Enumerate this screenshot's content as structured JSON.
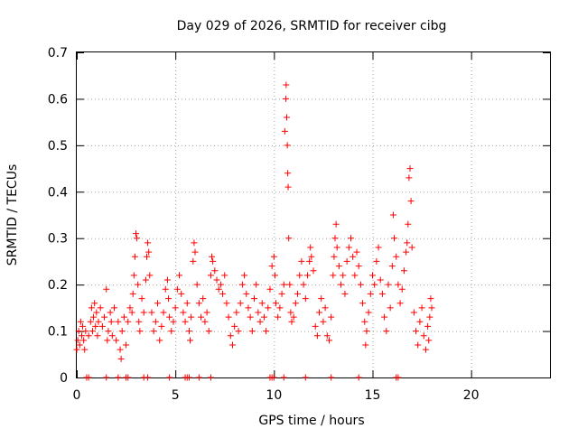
{
  "chart_data": {
    "type": "scatter",
    "title": "Day 029 of 2026, SRMTID for receiver cibg",
    "xlabel": "GPS time / hours",
    "ylabel": "SRMTID / TECUs",
    "xlim": [
      0,
      24
    ],
    "ylim": [
      0,
      0.7
    ],
    "x_ticks": [
      0,
      5,
      10,
      15,
      20
    ],
    "x_tick_labels": [
      "0",
      "5",
      "10",
      "15",
      "20"
    ],
    "y_ticks": [
      0,
      0.1,
      0.2,
      0.3,
      0.4,
      0.5,
      0.6,
      0.7
    ],
    "y_tick_labels": [
      "0",
      "0.1",
      "0.2",
      "0.3",
      "0.4",
      "0.5",
      "0.6",
      "0.7"
    ],
    "grid": true,
    "marker": "+",
    "color": "#ff0000",
    "series": [
      {
        "name": "SRMTID",
        "points": [
          [
            0.0,
            0.06
          ],
          [
            0.05,
            0.08
          ],
          [
            0.1,
            0.1
          ],
          [
            0.15,
            0.07
          ],
          [
            0.2,
            0.12
          ],
          [
            0.25,
            0.09
          ],
          [
            0.3,
            0.11
          ],
          [
            0.35,
            0.08
          ],
          [
            0.4,
            0.06
          ],
          [
            0.45,
            0.1
          ],
          [
            0.6,
            0.09
          ],
          [
            0.7,
            0.12
          ],
          [
            0.75,
            0.15
          ],
          [
            0.8,
            0.1
          ],
          [
            0.85,
            0.13
          ],
          [
            0.9,
            0.16
          ],
          [
            0.95,
            0.11
          ],
          [
            1.0,
            0.14
          ],
          [
            1.05,
            0.09
          ],
          [
            1.1,
            0.12
          ],
          [
            1.2,
            0.15
          ],
          [
            1.3,
            0.11
          ],
          [
            1.4,
            0.13
          ],
          [
            1.5,
            0.19
          ],
          [
            1.55,
            0.08
          ],
          [
            1.6,
            0.1
          ],
          [
            1.7,
            0.14
          ],
          [
            1.75,
            0.12
          ],
          [
            1.8,
            0.09
          ],
          [
            1.9,
            0.15
          ],
          [
            2.0,
            0.08
          ],
          [
            2.1,
            0.12
          ],
          [
            2.2,
            0.06
          ],
          [
            2.25,
            0.04
          ],
          [
            2.3,
            0.1
          ],
          [
            2.4,
            0.13
          ],
          [
            2.5,
            0.07
          ],
          [
            2.6,
            0.12
          ],
          [
            2.7,
            0.15
          ],
          [
            2.8,
            0.14
          ],
          [
            2.85,
            0.18
          ],
          [
            2.9,
            0.22
          ],
          [
            2.95,
            0.26
          ],
          [
            3.0,
            0.31
          ],
          [
            3.05,
            0.3
          ],
          [
            3.1,
            0.2
          ],
          [
            3.15,
            0.12
          ],
          [
            3.2,
            0.1
          ],
          [
            3.3,
            0.17
          ],
          [
            3.4,
            0.14
          ],
          [
            3.5,
            0.21
          ],
          [
            3.55,
            0.26
          ],
          [
            3.6,
            0.29
          ],
          [
            3.65,
            0.27
          ],
          [
            3.7,
            0.22
          ],
          [
            3.8,
            0.14
          ],
          [
            3.9,
            0.1
          ],
          [
            4.0,
            0.12
          ],
          [
            4.1,
            0.16
          ],
          [
            4.2,
            0.08
          ],
          [
            4.3,
            0.11
          ],
          [
            4.4,
            0.14
          ],
          [
            4.5,
            0.19
          ],
          [
            4.6,
            0.21
          ],
          [
            4.65,
            0.17
          ],
          [
            4.7,
            0.13
          ],
          [
            4.8,
            0.1
          ],
          [
            4.9,
            0.12
          ],
          [
            5.0,
            0.15
          ],
          [
            5.1,
            0.19
          ],
          [
            5.2,
            0.22
          ],
          [
            5.3,
            0.18
          ],
          [
            5.4,
            0.14
          ],
          [
            5.5,
            0.12
          ],
          [
            5.6,
            0.16
          ],
          [
            5.7,
            0.1
          ],
          [
            5.75,
            0.08
          ],
          [
            5.8,
            0.13
          ],
          [
            5.9,
            0.25
          ],
          [
            5.95,
            0.29
          ],
          [
            6.0,
            0.27
          ],
          [
            6.1,
            0.2
          ],
          [
            6.2,
            0.16
          ],
          [
            6.3,
            0.13
          ],
          [
            6.4,
            0.17
          ],
          [
            6.5,
            0.12
          ],
          [
            6.6,
            0.14
          ],
          [
            6.7,
            0.1
          ],
          [
            6.8,
            0.22
          ],
          [
            6.85,
            0.26
          ],
          [
            6.9,
            0.25
          ],
          [
            7.0,
            0.23
          ],
          [
            7.1,
            0.21
          ],
          [
            7.2,
            0.19
          ],
          [
            7.3,
            0.2
          ],
          [
            7.4,
            0.18
          ],
          [
            7.5,
            0.22
          ],
          [
            7.6,
            0.16
          ],
          [
            7.7,
            0.13
          ],
          [
            7.8,
            0.09
          ],
          [
            7.9,
            0.07
          ],
          [
            8.0,
            0.11
          ],
          [
            8.1,
            0.14
          ],
          [
            8.2,
            0.1
          ],
          [
            8.3,
            0.16
          ],
          [
            8.4,
            0.2
          ],
          [
            8.5,
            0.22
          ],
          [
            8.6,
            0.18
          ],
          [
            8.7,
            0.15
          ],
          [
            8.8,
            0.13
          ],
          [
            8.9,
            0.1
          ],
          [
            9.0,
            0.17
          ],
          [
            9.1,
            0.2
          ],
          [
            9.2,
            0.14
          ],
          [
            9.3,
            0.12
          ],
          [
            9.4,
            0.16
          ],
          [
            9.5,
            0.13
          ],
          [
            9.6,
            0.1
          ],
          [
            9.7,
            0.15
          ],
          [
            9.8,
            0.19
          ],
          [
            9.9,
            0.24
          ],
          [
            10.0,
            0.26
          ],
          [
            10.05,
            0.22
          ],
          [
            10.1,
            0.16
          ],
          [
            10.2,
            0.13
          ],
          [
            10.3,
            0.15
          ],
          [
            10.4,
            0.18
          ],
          [
            10.5,
            0.2
          ],
          [
            10.55,
            0.53
          ],
          [
            10.6,
            0.6
          ],
          [
            10.62,
            0.63
          ],
          [
            10.65,
            0.56
          ],
          [
            10.68,
            0.5
          ],
          [
            10.7,
            0.44
          ],
          [
            10.72,
            0.41
          ],
          [
            10.75,
            0.3
          ],
          [
            10.8,
            0.2
          ],
          [
            10.85,
            0.14
          ],
          [
            10.9,
            0.12
          ],
          [
            11.0,
            0.13
          ],
          [
            11.1,
            0.16
          ],
          [
            11.2,
            0.18
          ],
          [
            11.3,
            0.22
          ],
          [
            11.4,
            0.25
          ],
          [
            11.5,
            0.2
          ],
          [
            11.6,
            0.17
          ],
          [
            11.7,
            0.22
          ],
          [
            11.8,
            0.25
          ],
          [
            11.85,
            0.28
          ],
          [
            11.9,
            0.26
          ],
          [
            12.0,
            0.23
          ],
          [
            12.1,
            0.11
          ],
          [
            12.2,
            0.09
          ],
          [
            12.3,
            0.14
          ],
          [
            12.4,
            0.17
          ],
          [
            12.5,
            0.12
          ],
          [
            12.6,
            0.15
          ],
          [
            12.7,
            0.09
          ],
          [
            12.8,
            0.08
          ],
          [
            12.9,
            0.13
          ],
          [
            13.0,
            0.22
          ],
          [
            13.05,
            0.26
          ],
          [
            13.1,
            0.3
          ],
          [
            13.15,
            0.33
          ],
          [
            13.2,
            0.28
          ],
          [
            13.3,
            0.24
          ],
          [
            13.4,
            0.2
          ],
          [
            13.5,
            0.22
          ],
          [
            13.6,
            0.18
          ],
          [
            13.7,
            0.25
          ],
          [
            13.8,
            0.28
          ],
          [
            13.9,
            0.3
          ],
          [
            14.0,
            0.26
          ],
          [
            14.1,
            0.22
          ],
          [
            14.2,
            0.27
          ],
          [
            14.3,
            0.24
          ],
          [
            14.4,
            0.2
          ],
          [
            14.5,
            0.16
          ],
          [
            14.6,
            0.12
          ],
          [
            14.65,
            0.07
          ],
          [
            14.7,
            0.1
          ],
          [
            14.8,
            0.14
          ],
          [
            14.9,
            0.18
          ],
          [
            15.0,
            0.22
          ],
          [
            15.1,
            0.2
          ],
          [
            15.2,
            0.25
          ],
          [
            15.3,
            0.28
          ],
          [
            15.4,
            0.21
          ],
          [
            15.5,
            0.18
          ],
          [
            15.6,
            0.13
          ],
          [
            15.7,
            0.1
          ],
          [
            15.8,
            0.2
          ],
          [
            15.9,
            0.15
          ],
          [
            16.0,
            0.24
          ],
          [
            16.05,
            0.35
          ],
          [
            16.1,
            0.3
          ],
          [
            16.2,
            0.26
          ],
          [
            16.3,
            0.2
          ],
          [
            16.4,
            0.16
          ],
          [
            16.5,
            0.19
          ],
          [
            16.6,
            0.23
          ],
          [
            16.7,
            0.27
          ],
          [
            16.75,
            0.29
          ],
          [
            16.8,
            0.33
          ],
          [
            16.85,
            0.43
          ],
          [
            16.9,
            0.45
          ],
          [
            16.95,
            0.38
          ],
          [
            17.0,
            0.28
          ],
          [
            17.1,
            0.14
          ],
          [
            17.2,
            0.1
          ],
          [
            17.3,
            0.07
          ],
          [
            17.4,
            0.12
          ],
          [
            17.5,
            0.15
          ],
          [
            17.6,
            0.09
          ],
          [
            17.7,
            0.06
          ],
          [
            17.8,
            0.11
          ],
          [
            17.85,
            0.08
          ],
          [
            17.9,
            0.13
          ],
          [
            17.95,
            0.17
          ],
          [
            18.0,
            0.15
          ],
          [
            0.5,
            0.0
          ],
          [
            0.6,
            0.0
          ],
          [
            1.5,
            0.0
          ],
          [
            2.1,
            0.0
          ],
          [
            2.5,
            0.0
          ],
          [
            2.6,
            0.0
          ],
          [
            3.4,
            0.0
          ],
          [
            3.6,
            0.0
          ],
          [
            4.7,
            0.0
          ],
          [
            5.5,
            0.0
          ],
          [
            5.6,
            0.0
          ],
          [
            5.7,
            0.0
          ],
          [
            6.2,
            0.0
          ],
          [
            6.8,
            0.0
          ],
          [
            9.8,
            0.0
          ],
          [
            9.9,
            0.0
          ],
          [
            10.0,
            0.0
          ],
          [
            10.5,
            0.0
          ],
          [
            11.6,
            0.0
          ],
          [
            12.9,
            0.0
          ],
          [
            14.3,
            0.0
          ],
          [
            16.2,
            0.0
          ],
          [
            16.3,
            0.0
          ]
        ]
      }
    ]
  }
}
